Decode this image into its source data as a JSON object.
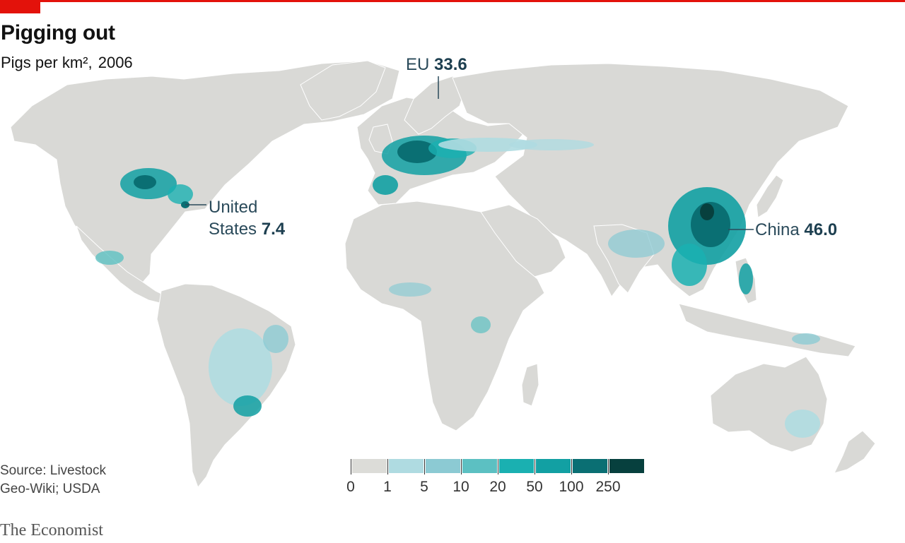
{
  "header": {
    "title": "Pigging out",
    "subtitle": "Pigs per km²,",
    "year": "2006"
  },
  "annotations": {
    "eu": {
      "label": "EU",
      "value": "33.6"
    },
    "us": {
      "label_line1": "United",
      "label_line2": "States",
      "value": "7.4"
    },
    "china": {
      "label": "China",
      "value": "46.0"
    }
  },
  "legend": {
    "breaks": [
      "0",
      "1",
      "5",
      "10",
      "20",
      "50",
      "100",
      "250"
    ],
    "colors": [
      "#dcdcd8",
      "#afdbe1",
      "#8ccad3",
      "#5cc0c2",
      "#1ab0b1",
      "#12a0a3",
      "#0a6f73",
      "#07403e"
    ]
  },
  "footer": {
    "source_line1": "Source: Livestock",
    "source_line2": "Geo-Wiki; USDA",
    "brand": "The Economist"
  },
  "colors": {
    "accent": "#e3120b",
    "land": "#d9d9d6",
    "ocean": "#ffffff",
    "annotation": "#2a4a5a"
  }
}
